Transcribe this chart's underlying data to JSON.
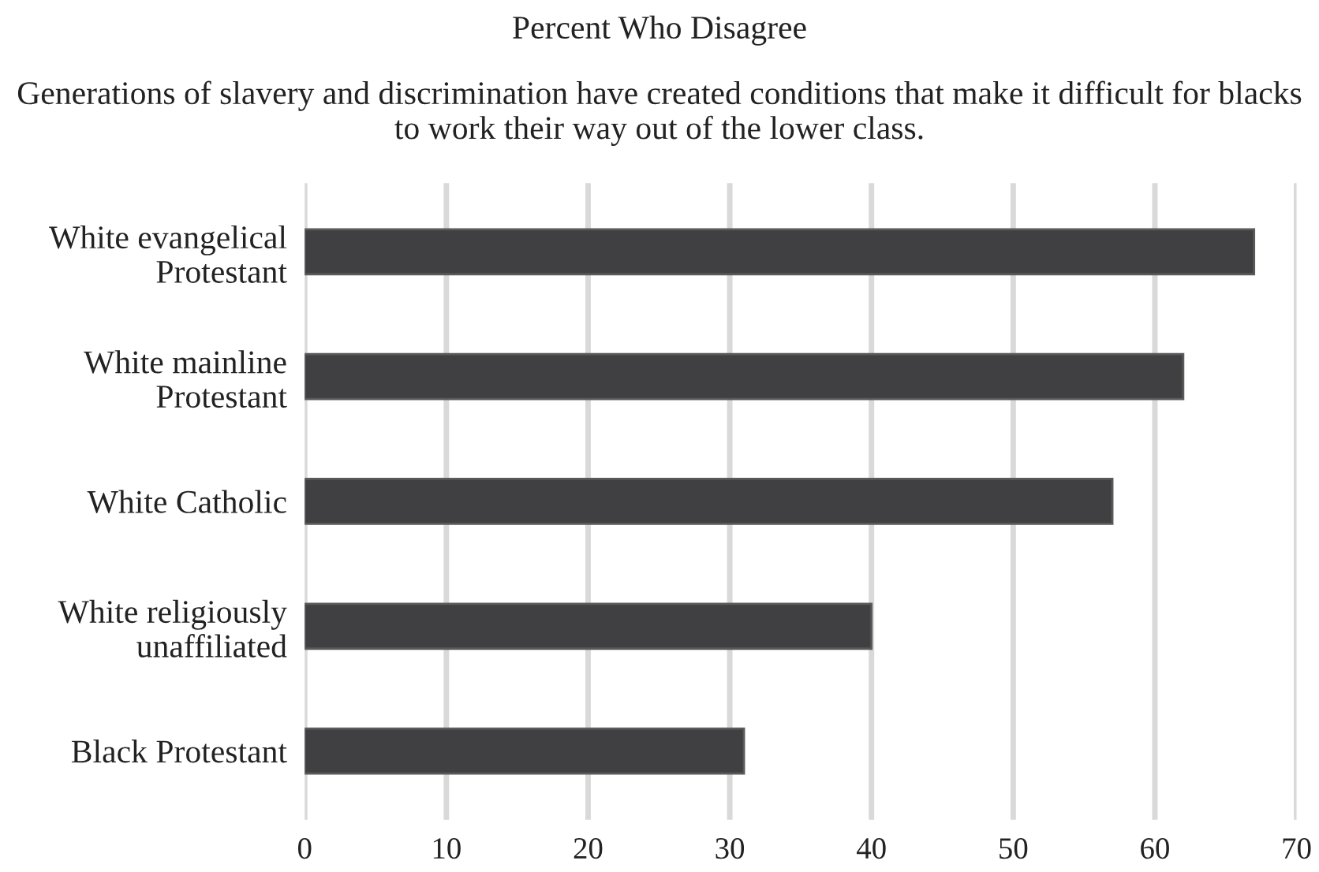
{
  "chart_data": {
    "type": "bar",
    "orientation": "horizontal",
    "title": "Percent Who Disagree",
    "subtitle": "Generations of slavery and discrimination have created conditions that make it difficult for blacks to work their way out of the lower class.",
    "categories": [
      "White evangelical\nProtestant",
      "White mainline\nProtestant",
      "White Catholic",
      "White religiously\nunaffiliated",
      "Black Protestant"
    ],
    "values": [
      67,
      62,
      57,
      40,
      31
    ],
    "color": "#404042",
    "xlim": [
      0,
      70
    ],
    "xticks": [
      0,
      10,
      20,
      30,
      40,
      50,
      60,
      70
    ],
    "grid": "x"
  }
}
